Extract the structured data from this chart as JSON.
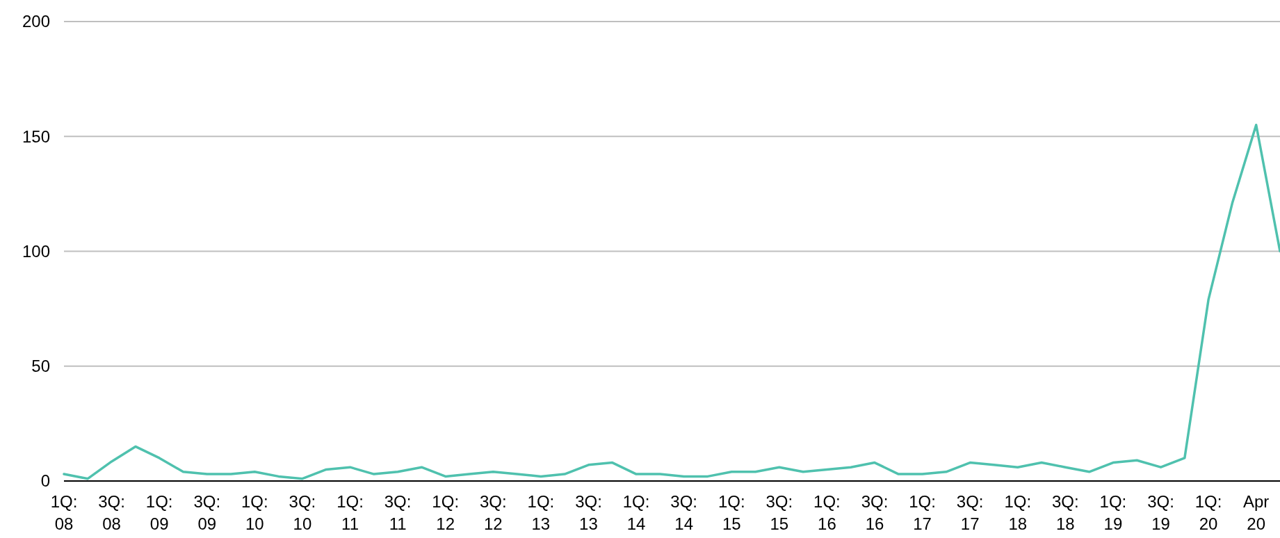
{
  "chart_data": {
    "type": "line",
    "categories": [
      "1Q: 08",
      null,
      "3Q: 08",
      null,
      "1Q: 09",
      null,
      "3Q: 09",
      null,
      "1Q: 10",
      null,
      "3Q: 10",
      null,
      "1Q: 11",
      null,
      "3Q: 11",
      null,
      "1Q: 12",
      null,
      "3Q: 12",
      null,
      "1Q: 13",
      null,
      "3Q: 13",
      null,
      "1Q: 14",
      null,
      "3Q: 14",
      null,
      "1Q: 15",
      null,
      "3Q: 15",
      null,
      "1Q: 16",
      null,
      "3Q: 16",
      null,
      "1Q: 17",
      null,
      "3Q: 17",
      null,
      "1Q: 18",
      null,
      "3Q: 18",
      null,
      "1Q: 19",
      null,
      "3Q: 19",
      null,
      "1Q: 20",
      null,
      "Apr 20",
      null
    ],
    "series": [
      {
        "color": "#4fc1ae",
        "values": [
          3,
          1,
          8.5,
          15,
          10,
          4,
          3,
          3,
          4,
          2,
          1,
          5,
          6,
          3,
          4,
          6,
          2,
          3,
          4,
          3,
          2,
          3,
          7,
          8,
          3,
          3,
          2,
          2,
          4,
          4,
          6,
          4,
          5,
          6,
          8,
          3,
          3,
          4,
          8,
          7,
          6,
          8,
          6,
          4,
          8,
          9,
          6,
          10,
          79,
          121,
          155,
          100
        ]
      }
    ],
    "ylim": [
      0,
      200
    ],
    "yticks": [
      0,
      50,
      100,
      150,
      200
    ],
    "grid": "y",
    "marker": "none",
    "line_style": "solid"
  }
}
